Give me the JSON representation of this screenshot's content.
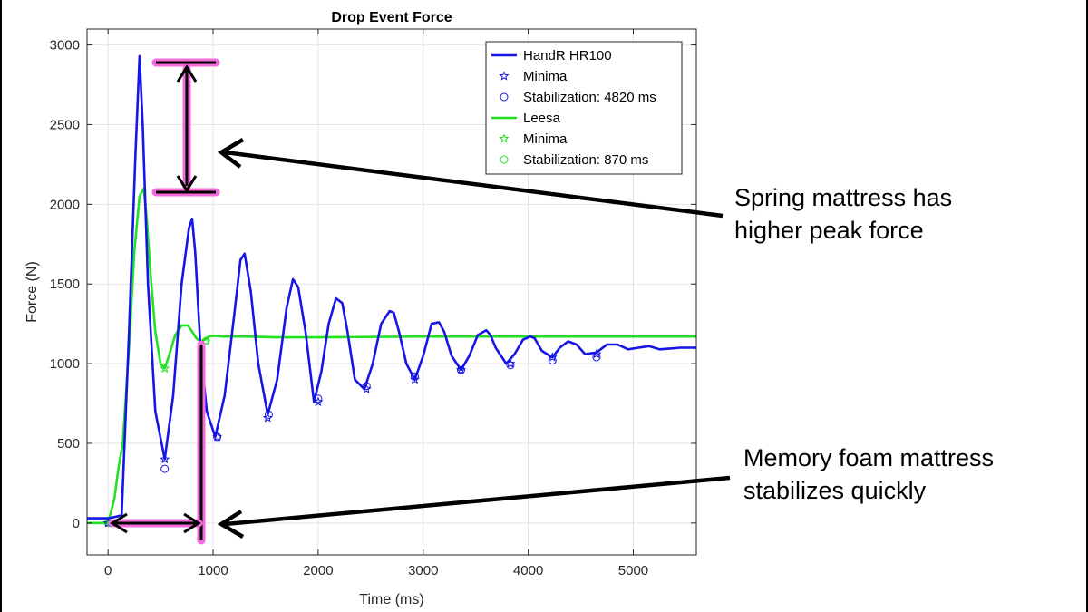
{
  "chart_data": {
    "type": "line",
    "title": "Drop Event Force",
    "xlabel": "Time (ms)",
    "ylabel": "Force (N)",
    "xlim": [
      -200,
      5600
    ],
    "ylim": [
      -200,
      3100
    ],
    "xticks": [
      0,
      1000,
      2000,
      3000,
      4000,
      5000
    ],
    "yticks": [
      0,
      500,
      1000,
      1500,
      2000,
      2500,
      3000
    ],
    "grid": true,
    "legend_position": "top-right",
    "series": [
      {
        "name": "HandR HR100",
        "color": "#1515e6",
        "style": "line",
        "x": [
          -200,
          0,
          80,
          130,
          200,
          260,
          300,
          330,
          380,
          450,
          540,
          620,
          700,
          770,
          800,
          830,
          880,
          940,
          1020,
          1110,
          1200,
          1260,
          1300,
          1360,
          1430,
          1520,
          1610,
          1700,
          1760,
          1810,
          1880,
          1960,
          2030,
          2100,
          2170,
          2230,
          2280,
          2350,
          2440,
          2520,
          2600,
          2680,
          2720,
          2770,
          2840,
          2920,
          3000,
          3080,
          3150,
          3200,
          3270,
          3360,
          3440,
          3520,
          3600,
          3640,
          3690,
          3790,
          3870,
          3950,
          4020,
          4060,
          4130,
          4230,
          4300,
          4380,
          4460,
          4540,
          4650,
          4750,
          4850,
          4950,
          5050,
          5150,
          5250,
          5350,
          5450,
          5600
        ],
        "y": [
          30,
          30,
          40,
          50,
          1200,
          2300,
          2930,
          2500,
          1500,
          700,
          400,
          800,
          1500,
          1850,
          1910,
          1700,
          1100,
          700,
          540,
          800,
          1300,
          1650,
          1690,
          1450,
          1000,
          680,
          900,
          1350,
          1530,
          1480,
          1200,
          760,
          950,
          1250,
          1410,
          1380,
          1200,
          900,
          840,
          1000,
          1250,
          1330,
          1320,
          1200,
          1000,
          900,
          1050,
          1250,
          1260,
          1200,
          1050,
          960,
          1050,
          1180,
          1210,
          1180,
          1100,
          1000,
          1060,
          1150,
          1170,
          1160,
          1080,
          1040,
          1100,
          1140,
          1120,
          1060,
          1070,
          1120,
          1120,
          1090,
          1100,
          1110,
          1090,
          1095,
          1100,
          1100
        ]
      },
      {
        "name": "Minima",
        "color": "#1515e6",
        "style": "star",
        "x": [
          0,
          540,
          1040,
          1520,
          2000,
          2460,
          2920,
          3360,
          3830,
          4230,
          4650
        ],
        "y": [
          0,
          400,
          540,
          660,
          760,
          840,
          900,
          960,
          1000,
          1040,
          1060
        ]
      },
      {
        "name": "Stabilization: 4820 ms",
        "color": "#1515e6",
        "style": "circle",
        "x": [
          540,
          1040,
          1530,
          2000,
          2460,
          2920,
          3360,
          3830,
          4230,
          4650
        ],
        "y": [
          340,
          540,
          680,
          780,
          860,
          920,
          960,
          990,
          1020,
          1040
        ]
      },
      {
        "name": "Leesa",
        "color": "#22e022",
        "style": "line",
        "x": [
          -200,
          0,
          60,
          100,
          140,
          200,
          250,
          300,
          340,
          370,
          400,
          450,
          500,
          540,
          580,
          640,
          700,
          760,
          800,
          840,
          880,
          920,
          960,
          1000,
          1100,
          1300,
          1600,
          2000,
          3000,
          4000,
          5000,
          5600
        ],
        "y": [
          0,
          0,
          150,
          350,
          500,
          1100,
          1700,
          2050,
          2100,
          1900,
          1600,
          1200,
          1000,
          970,
          1050,
          1180,
          1240,
          1240,
          1200,
          1160,
          1140,
          1150,
          1170,
          1175,
          1170,
          1170,
          1165,
          1165,
          1170,
          1170,
          1170,
          1170
        ]
      },
      {
        "name": "Minima",
        "color": "#22e022",
        "style": "star",
        "x": [
          0,
          540,
          930
        ],
        "y": [
          0,
          970,
          1140
        ]
      },
      {
        "name": "Stabilization: 870 ms",
        "color": "#22e022",
        "style": "circle",
        "x": [
          0,
          930
        ],
        "y": [
          0,
          1140
        ]
      }
    ]
  },
  "annotations": {
    "spring_text": "Spring mattress has\nhigher peak force",
    "foam_text": "Memory foam mattress\nstabilizes quickly"
  }
}
